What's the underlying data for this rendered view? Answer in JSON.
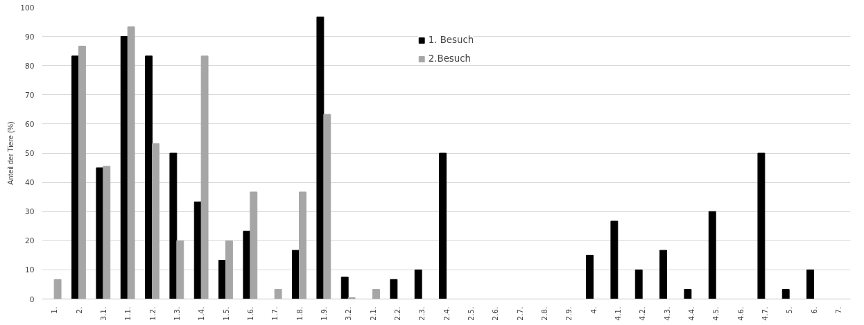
{
  "chart_data": {
    "type": "bar",
    "ylabel": "Anteil der Tiere (%)",
    "categories": [
      "1.",
      "2.",
      "3.1.",
      "1.1.",
      "1.2.",
      "1.3.",
      "1.4.",
      "1.5.",
      "1.6.",
      "1.7.",
      "1.8.",
      "1.9.",
      "3.2.",
      "2.1.",
      "2.2.",
      "2.3.",
      "2.4.",
      "2.5.",
      "2.6.",
      "2.7.",
      "2.8.",
      "2.9.",
      "4.",
      "4.1.",
      "4.2.",
      "4.3.",
      "4.4.",
      "4.5.",
      "4.6.",
      "4.7.",
      "5.",
      "6.",
      "7."
    ],
    "series": [
      {
        "name": "1. Besuch",
        "color": "#000000",
        "values": [
          0,
          83.3,
          45,
          90,
          83.3,
          50,
          33.3,
          13.3,
          23.3,
          0,
          16.7,
          96.7,
          7.5,
          0,
          6.7,
          10,
          50,
          0,
          0,
          0,
          0,
          0,
          15,
          26.7,
          10,
          16.7,
          3.3,
          30,
          0,
          50,
          3.3,
          10,
          0
        ]
      },
      {
        "name": "2.Besuch",
        "color": "#a6a6a6",
        "values": [
          6.7,
          86.7,
          45.5,
          93.3,
          53.3,
          20,
          83.3,
          20,
          36.7,
          3.3,
          36.7,
          63.3,
          0.5,
          3.3,
          0,
          0,
          0,
          0,
          0,
          0,
          0,
          0,
          0,
          0,
          0,
          0,
          0,
          0,
          0,
          0,
          0,
          0,
          0
        ]
      }
    ],
    "ylim": [
      0,
      100
    ],
    "yticks": [
      0,
      10,
      20,
      30,
      40,
      50,
      60,
      70,
      80,
      90,
      100
    ],
    "grid": "y",
    "legend": "top"
  }
}
